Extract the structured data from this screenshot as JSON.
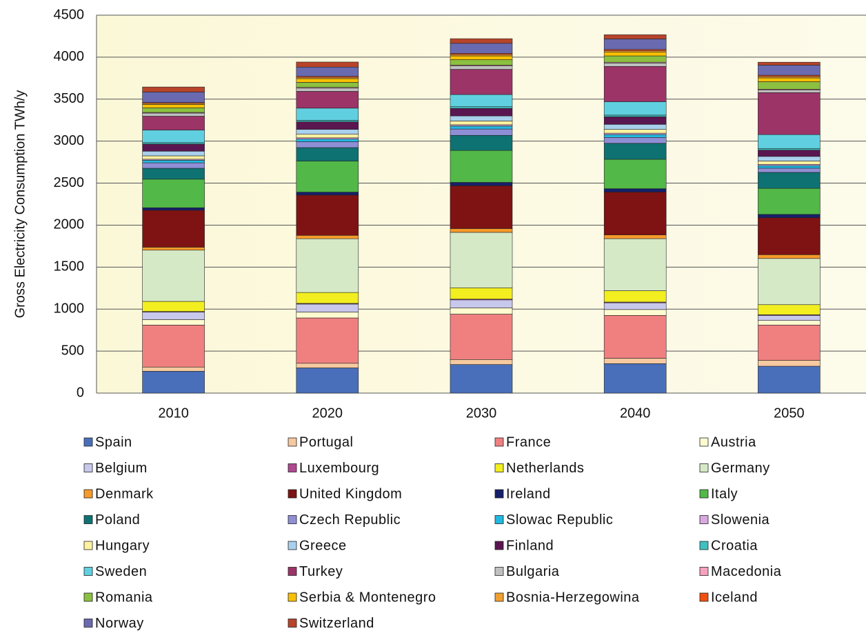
{
  "chart_data": {
    "type": "stacked_bar",
    "ylabel": "Gross Electricity Consumption TWh/y",
    "categories": [
      "2010",
      "2020",
      "2030",
      "2040",
      "2050"
    ],
    "ylim": [
      0,
      4500
    ],
    "yticks": [
      0,
      500,
      1000,
      1500,
      2000,
      2500,
      3000,
      3500,
      4000,
      4500
    ],
    "grid": true,
    "series": [
      {
        "name": "Spain",
        "color": "#4a6fba",
        "values": [
          260,
          300,
          340,
          350,
          320
        ]
      },
      {
        "name": "Portugal",
        "color": "#f6c9a0",
        "values": [
          50,
          55,
          60,
          65,
          70
        ]
      },
      {
        "name": "France",
        "color": "#f08080",
        "values": [
          500,
          540,
          540,
          510,
          420
        ]
      },
      {
        "name": "Austria",
        "color": "#fffbd0",
        "values": [
          65,
          70,
          75,
          70,
          55
        ]
      },
      {
        "name": "Belgium",
        "color": "#c8c8ec",
        "values": [
          90,
          95,
          95,
          80,
          60
        ]
      },
      {
        "name": "Luxembourg",
        "color": "#b04890",
        "values": [
          7,
          8,
          9,
          9,
          8
        ]
      },
      {
        "name": "Netherlands",
        "color": "#f2ee20",
        "values": [
          120,
          130,
          135,
          135,
          120
        ]
      },
      {
        "name": "Germany",
        "color": "#d6e9c6",
        "values": [
          610,
          640,
          660,
          620,
          550
        ]
      },
      {
        "name": "Denmark",
        "color": "#f79a2a",
        "values": [
          35,
          40,
          45,
          45,
          45
        ]
      },
      {
        "name": "United Kingdom",
        "color": "#7f1212",
        "values": [
          440,
          480,
          510,
          510,
          440
        ]
      },
      {
        "name": "Ireland",
        "color": "#16206a",
        "values": [
          30,
          35,
          40,
          40,
          40
        ]
      },
      {
        "name": "Italy",
        "color": "#52b848",
        "values": [
          340,
          370,
          380,
          350,
          310
        ]
      },
      {
        "name": "Poland",
        "color": "#0e7272",
        "values": [
          130,
          160,
          180,
          190,
          190
        ]
      },
      {
        "name": "Czech Republic",
        "color": "#8f8fd6",
        "values": [
          65,
          70,
          75,
          70,
          50
        ]
      },
      {
        "name": "Slowac Republic",
        "color": "#22b8e0",
        "values": [
          30,
          32,
          35,
          35,
          30
        ]
      },
      {
        "name": "Slowenia",
        "color": "#d8a8e0",
        "values": [
          13,
          15,
          16,
          16,
          15
        ]
      },
      {
        "name": "Hungary",
        "color": "#fff2a0",
        "values": [
          40,
          42,
          45,
          45,
          40
        ]
      },
      {
        "name": "Greece",
        "color": "#a8d0ec",
        "values": [
          55,
          58,
          60,
          60,
          55
        ]
      },
      {
        "name": "Finland",
        "color": "#5a1650",
        "values": [
          85,
          90,
          90,
          90,
          75
        ]
      },
      {
        "name": "Croatia",
        "color": "#40c0c0",
        "values": [
          17,
          18,
          20,
          20,
          20
        ]
      },
      {
        "name": "Sweden",
        "color": "#60d0e0",
        "values": [
          150,
          145,
          145,
          160,
          165
        ]
      },
      {
        "name": "Turkey",
        "color": "#9c3468",
        "values": [
          165,
          200,
          300,
          420,
          500
        ]
      },
      {
        "name": "Bulgaria",
        "color": "#c0c0c0",
        "values": [
          37,
          38,
          40,
          40,
          30
        ]
      },
      {
        "name": "Macedonia",
        "color": "#f8a0c0",
        "values": [
          8,
          9,
          10,
          10,
          10
        ]
      },
      {
        "name": "Romania",
        "color": "#8cc040",
        "values": [
          55,
          60,
          65,
          75,
          90
        ]
      },
      {
        "name": "Serbia & Montenegro",
        "color": "#f8c000",
        "values": [
          40,
          45,
          45,
          45,
          45
        ]
      },
      {
        "name": "Bosnia-Herzegowina",
        "color": "#f0a030",
        "values": [
          13,
          15,
          16,
          17,
          17
        ]
      },
      {
        "name": "Iceland",
        "color": "#f05010",
        "values": [
          10,
          12,
          14,
          15,
          15
        ]
      },
      {
        "name": "Norway",
        "color": "#6a6ab0",
        "values": [
          125,
          110,
          120,
          125,
          120
        ]
      },
      {
        "name": "Switzerland",
        "color": "#b8442a",
        "values": [
          60,
          60,
          55,
          50,
          35
        ]
      }
    ]
  }
}
